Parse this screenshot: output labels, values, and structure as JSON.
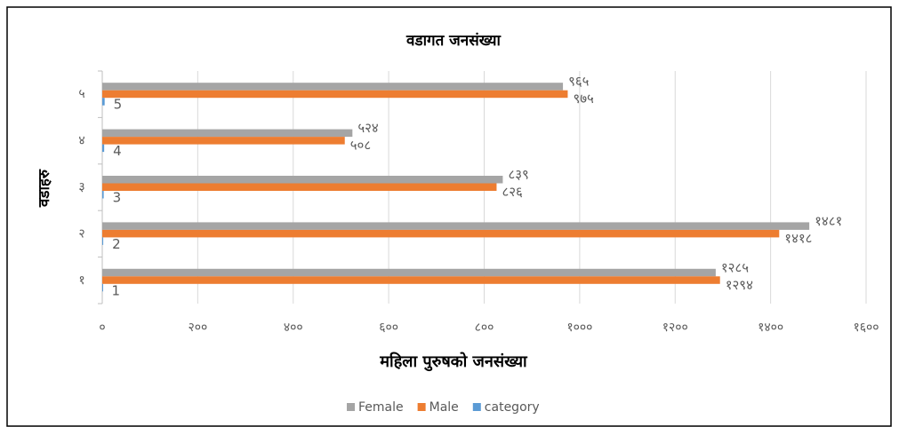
{
  "chart_data": {
    "type": "hbar",
    "title": "वडागत जनसंख्या",
    "x_label": "महिला पुरुषको जनसंख्या",
    "y_label": "वडाहरु",
    "categories": [
      "१",
      "२",
      "३",
      "४",
      "५"
    ],
    "series": [
      {
        "name": "Female",
        "color": "#a5a5a5",
        "values": [
          1285,
          1481,
          839,
          524,
          965
        ],
        "value_labels": [
          "१२८५",
          "१४८१",
          "८३९",
          "५२४",
          "९६५"
        ]
      },
      {
        "name": "Male",
        "color": "#ed7d31",
        "values": [
          1294,
          1418,
          826,
          508,
          975
        ],
        "value_labels": [
          "१२९४",
          "१४१८",
          "८२६",
          "५०८",
          "९७५"
        ]
      },
      {
        "name": "category",
        "color": "#5b9bd5",
        "values": [
          1,
          2,
          3,
          4,
          5
        ]
      }
    ],
    "xlim": [
      0,
      1600
    ],
    "xticks": [
      {
        "value": 0,
        "label": "०"
      },
      {
        "value": 200,
        "label": "२००"
      },
      {
        "value": 400,
        "label": "४००"
      },
      {
        "value": 600,
        "label": "६००"
      },
      {
        "value": 800,
        "label": "८००"
      },
      {
        "value": 1000,
        "label": "१०००"
      },
      {
        "value": 1200,
        "label": "१२००"
      },
      {
        "value": 1400,
        "label": "१४००"
      },
      {
        "value": 1600,
        "label": "१६००"
      }
    ],
    "grid": true,
    "legend": "bottom"
  }
}
